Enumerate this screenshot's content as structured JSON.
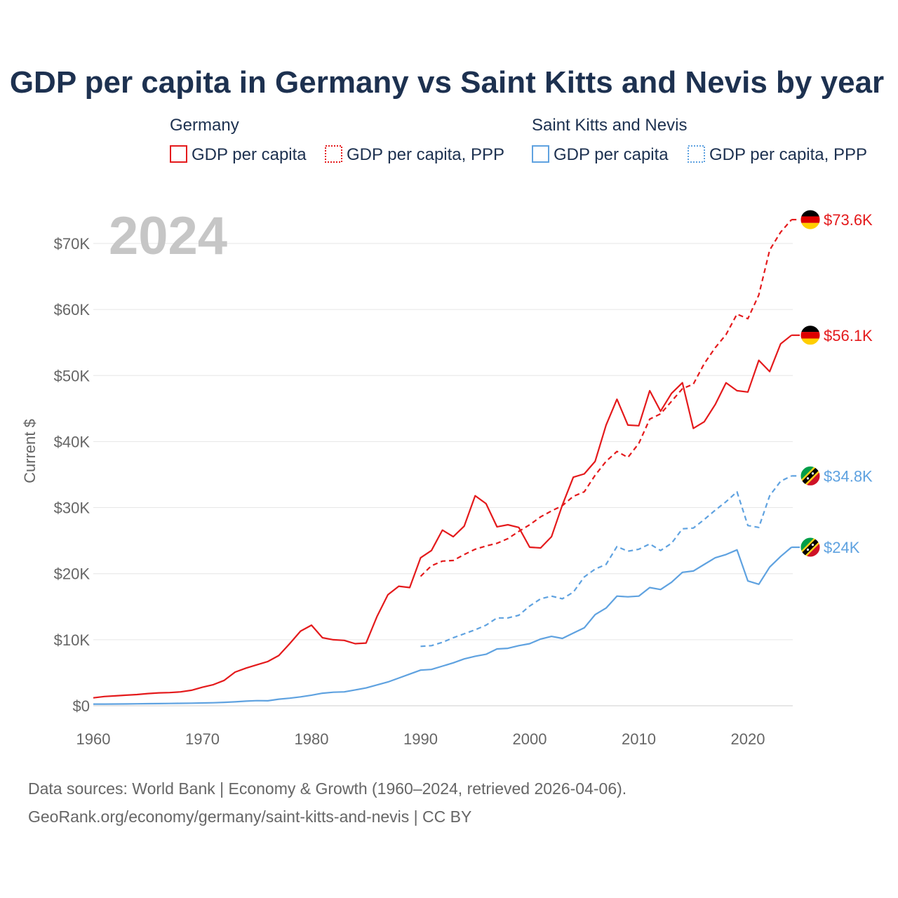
{
  "chart_data": {
    "type": "line",
    "title": "GDP per capita in Germany vs Saint Kitts and Nevis by year",
    "year_label": "2024",
    "ylabel": "Current $",
    "xlabel": "",
    "xlim": [
      1960,
      2024
    ],
    "ylim": [
      0,
      75000
    ],
    "x_ticks": [
      "1960",
      "1970",
      "1980",
      "1990",
      "2000",
      "2010",
      "2020"
    ],
    "y_ticks": [
      "$0",
      "$10K",
      "$20K",
      "$30K",
      "$40K",
      "$50K",
      "$60K",
      "$70K"
    ],
    "legend": {
      "groups": [
        {
          "name": "Germany",
          "items": [
            "GDP per capita",
            "GDP per capita, PPP"
          ]
        },
        {
          "name": "Saint Kitts and Nevis",
          "items": [
            "GDP per capita",
            "GDP per capita, PPP"
          ]
        }
      ]
    },
    "colors": {
      "germany": "#e41a1c",
      "skn": "#5fa2e0"
    },
    "series": [
      {
        "name": "Germany GDP per capita",
        "country": "germany",
        "style": "solid",
        "start_year": 1960,
        "end_label": "$56.1K",
        "values": [
          1200,
          1400,
          1500,
          1600,
          1700,
          1850,
          1950,
          2000,
          2100,
          2350,
          2800,
          3200,
          3850,
          5100,
          5700,
          6200,
          6700,
          7600,
          9400,
          11300,
          12200,
          10300,
          10000,
          9900,
          9400,
          9500,
          13500,
          16800,
          18100,
          17900,
          22400,
          23500,
          26600,
          25600,
          27200,
          31800,
          30600,
          27100,
          27400,
          27000,
          24000,
          23900,
          25600,
          30400,
          34600,
          35100,
          37000,
          42500,
          46400,
          42500,
          42400,
          47700,
          44600,
          47300,
          48900,
          42000,
          43000,
          45600,
          48900,
          47700,
          47500,
          52300,
          50600,
          54800,
          56100
        ]
      },
      {
        "name": "Germany GDP per capita, PPP",
        "country": "germany",
        "style": "dashed",
        "start_year": 1990,
        "end_label": "$73.6K",
        "values": [
          19600,
          21200,
          21900,
          22000,
          22900,
          23700,
          24200,
          24600,
          25300,
          26400,
          27400,
          28600,
          29500,
          30300,
          31700,
          32400,
          34900,
          37000,
          38500,
          37600,
          39700,
          43400,
          44200,
          46100,
          48000,
          48700,
          51800,
          54200,
          56200,
          59300,
          58600,
          62200,
          69000,
          71700,
          73600
        ]
      },
      {
        "name": "Saint Kitts and Nevis GDP per capita",
        "country": "skn",
        "style": "solid",
        "start_year": 1960,
        "end_label": "$24K",
        "values": [
          250,
          260,
          270,
          280,
          300,
          320,
          330,
          350,
          370,
          390,
          420,
          460,
          520,
          600,
          700,
          780,
          750,
          1000,
          1150,
          1350,
          1600,
          1900,
          2050,
          2100,
          2400,
          2700,
          3150,
          3600,
          4200,
          4800,
          5400,
          5500,
          6000,
          6500,
          7100,
          7500,
          7800,
          8600,
          8700,
          9100,
          9400,
          10100,
          10500,
          10200,
          11000,
          11800,
          13800,
          14800,
          16600,
          16500,
          16600,
          17900,
          17600,
          18700,
          20200,
          20400,
          21400,
          22400,
          22900,
          23600,
          18900,
          18400,
          21000,
          22600,
          24000
        ]
      },
      {
        "name": "Saint Kitts and Nevis GDP per capita, PPP",
        "country": "skn",
        "style": "dashed",
        "start_year": 1990,
        "end_label": "$34.8K",
        "values": [
          9000,
          9100,
          9600,
          10300,
          10900,
          11500,
          12200,
          13300,
          13300,
          13700,
          15100,
          16200,
          16600,
          16200,
          17200,
          19500,
          20700,
          21400,
          24100,
          23400,
          23700,
          24500,
          23500,
          24600,
          26800,
          26900,
          28200,
          29600,
          30900,
          32400,
          27300,
          27000,
          31800,
          34000,
          34800
        ]
      }
    ]
  },
  "source": {
    "line1": "Data sources: World Bank | Economy & Growth (1960–2024, retrieved 2026-04-06).",
    "line2": "GeoRank.org/economy/germany/saint-kitts-and-nevis | CC BY"
  }
}
